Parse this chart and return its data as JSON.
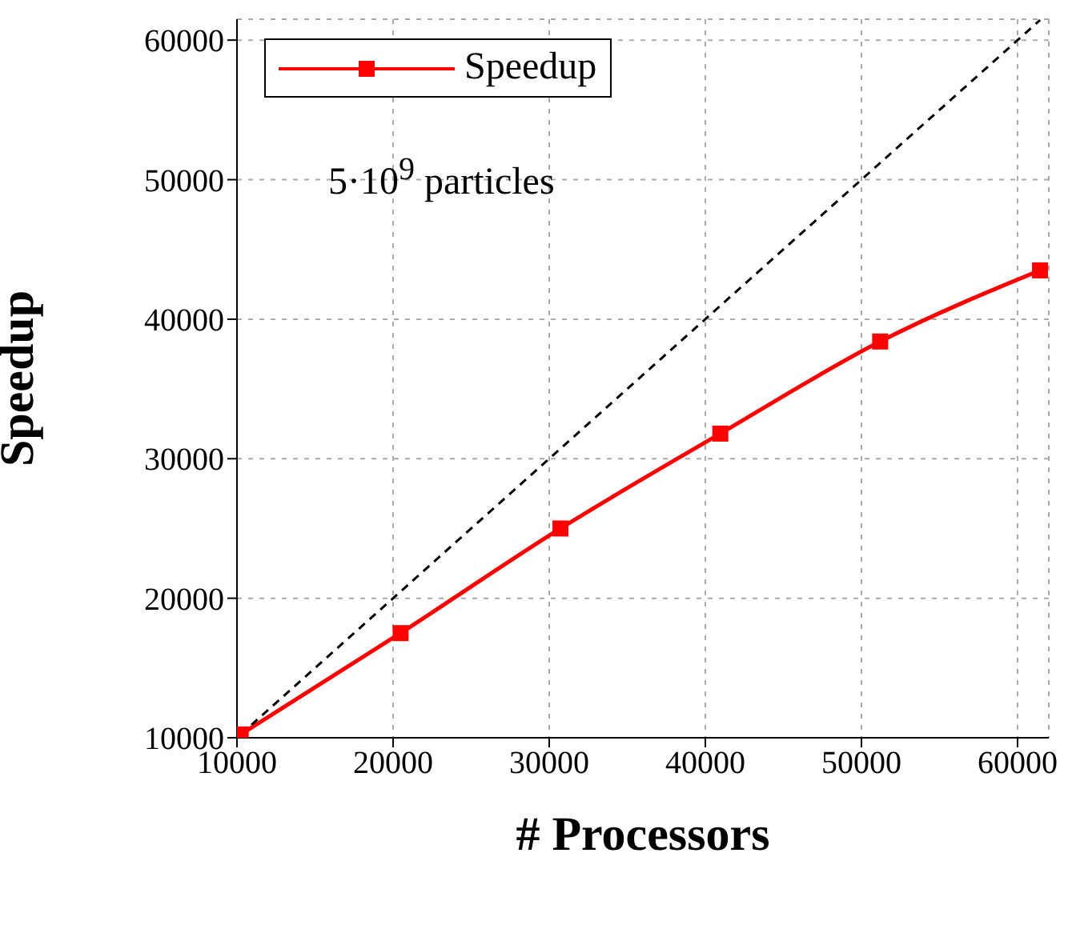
{
  "chart_data": {
    "type": "line",
    "xlabel": "# Processors",
    "ylabel": "Speedup",
    "annotations": [
      "5·10$^{9}$ particles"
    ],
    "x": [
      10240,
      20480,
      30720,
      40960,
      51200,
      61440
    ],
    "series": [
      {
        "name": "Speedup",
        "color": "#ff0000",
        "values": [
          10240,
          17500,
          25000,
          31800,
          38400,
          43500
        ],
        "marker": "square",
        "line_style": "solid"
      },
      {
        "color": "#000000",
        "x": [
          10240,
          61440
        ],
        "values": [
          10240,
          61440
        ],
        "marker": "none",
        "line_style": "dashed"
      }
    ],
    "xlim": [
      10000,
      62000
    ],
    "ylim": [
      10000,
      61500
    ],
    "xticks": [
      10000,
      20000,
      30000,
      40000,
      50000,
      60000
    ],
    "yticks": [
      10000,
      20000,
      30000,
      40000,
      50000,
      60000
    ],
    "grid": true,
    "legend": "top left"
  }
}
